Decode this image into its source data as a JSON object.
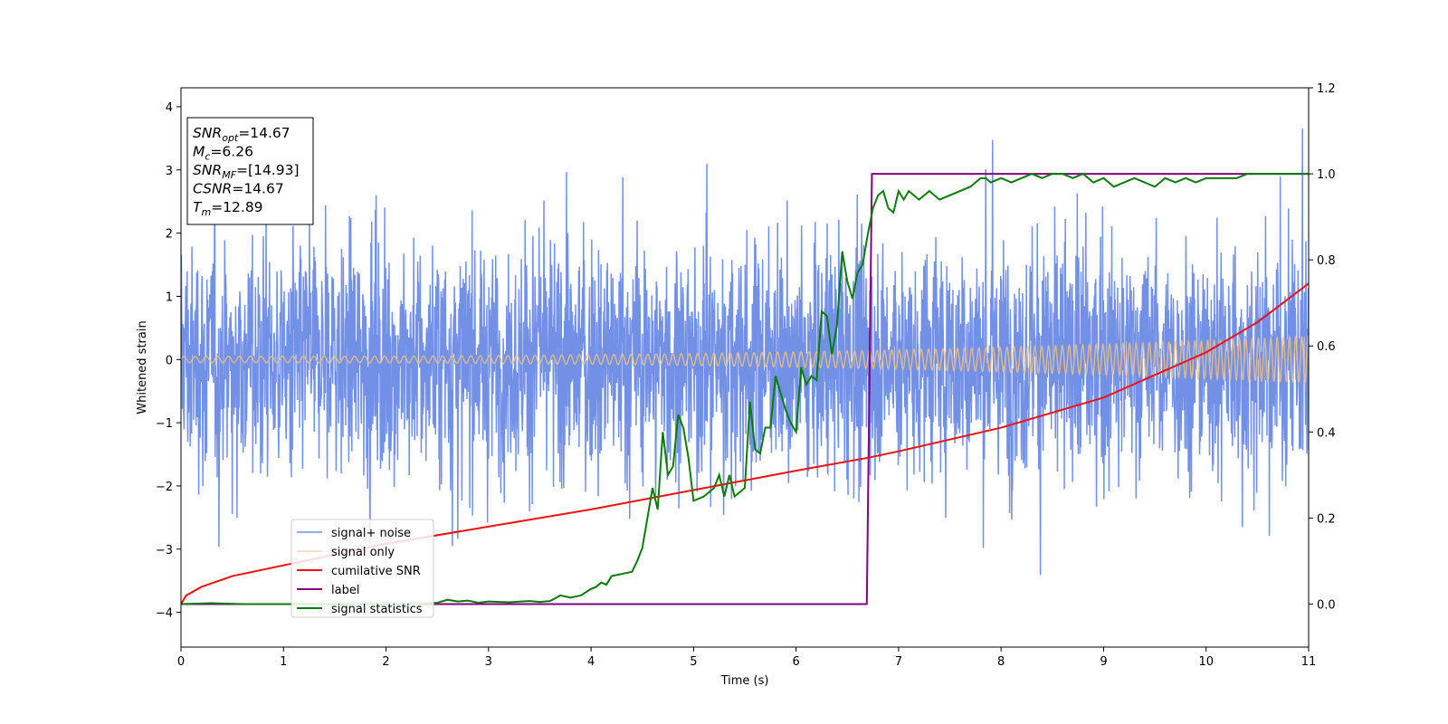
{
  "chart_data": {
    "type": "line",
    "xlabel": "Time (s)",
    "ylabel": "Whitened strain",
    "xlim": [
      0,
      11
    ],
    "ylim_left": [
      -4.55,
      4.3
    ],
    "ylim_right": [
      -0.1,
      1.2
    ],
    "x_ticks": [
      "0",
      "1",
      "2",
      "3",
      "4",
      "5",
      "6",
      "7",
      "8",
      "9",
      "10",
      "11"
    ],
    "y_ticks_left": [
      "−4",
      "−3",
      "−2",
      "−1",
      "0",
      "1",
      "2",
      "3",
      "4"
    ],
    "y_ticks_right": [
      "0.0",
      "0.2",
      "0.4",
      "0.6",
      "0.8",
      "1.0",
      "1.2"
    ],
    "info_box": [
      {
        "base": "SNR",
        "sub": "opt",
        "value": "=14.67"
      },
      {
        "base": "M",
        "sub": "c",
        "value": "=6.26"
      },
      {
        "base": "SNR",
        "sub": "MF",
        "value": "=[14.93]"
      },
      {
        "base": "CSNR",
        "sub": "",
        "value": "=14.67"
      },
      {
        "base": "T",
        "sub": "m",
        "value": "=12.89"
      }
    ],
    "legend_position": "lower-left",
    "series": [
      {
        "name": "signal+ noise",
        "color": "#6b8ae6",
        "axis": "left",
        "description_values": "noise band amplitude about ±2.2 with spikes to ±3.7"
      },
      {
        "name": "signal only",
        "color": "#f0c080",
        "axis": "left",
        "amplitude_start": 0.05,
        "amplitude_end": 0.37
      },
      {
        "name": "cumilative SNR",
        "color": "#ee1111",
        "axis": "right",
        "x": [
          0,
          0.05,
          0.2,
          0.5,
          1,
          2,
          3,
          4,
          5,
          6,
          6.7,
          7,
          8,
          9,
          10,
          10.5,
          11
        ],
        "y": [
          0.0,
          0.02,
          0.04,
          0.065,
          0.09,
          0.14,
          0.18,
          0.22,
          0.265,
          0.31,
          0.34,
          0.355,
          0.41,
          0.48,
          0.585,
          0.655,
          0.745
        ]
      },
      {
        "name": "label",
        "color": "#800080",
        "axis": "right",
        "x": [
          0,
          6.69,
          6.74,
          11
        ],
        "y": [
          0,
          0,
          1,
          1
        ]
      },
      {
        "name": "signal statistics",
        "color": "#0a7a0a",
        "axis": "right",
        "x": [
          0,
          0.3,
          0.6,
          1.0,
          1.5,
          2.0,
          2.3,
          2.5,
          2.6,
          2.7,
          2.8,
          2.9,
          3.0,
          3.2,
          3.4,
          3.5,
          3.6,
          3.7,
          3.8,
          3.9,
          4.0,
          4.05,
          4.1,
          4.15,
          4.2,
          4.3,
          4.4,
          4.45,
          4.5,
          4.55,
          4.6,
          4.65,
          4.7,
          4.75,
          4.8,
          4.85,
          4.9,
          4.95,
          5.0,
          5.1,
          5.2,
          5.25,
          5.3,
          5.35,
          5.4,
          5.45,
          5.5,
          5.55,
          5.6,
          5.65,
          5.7,
          5.75,
          5.8,
          5.9,
          5.95,
          6.0,
          6.05,
          6.1,
          6.15,
          6.2,
          6.25,
          6.3,
          6.35,
          6.4,
          6.45,
          6.5,
          6.55,
          6.6,
          6.65,
          6.7,
          6.75,
          6.8,
          6.85,
          6.9,
          6.95,
          7.0,
          7.05,
          7.1,
          7.15,
          7.2,
          7.25,
          7.3,
          7.35,
          7.4,
          7.5,
          7.6,
          7.7,
          7.75,
          7.8,
          7.85,
          7.9,
          8.0,
          8.1,
          8.2,
          8.3,
          8.4,
          8.5,
          8.6,
          8.7,
          8.8,
          8.9,
          9.0,
          9.1,
          9.2,
          9.3,
          9.4,
          9.5,
          9.6,
          9.7,
          9.8,
          9.9,
          10.0,
          10.1,
          10.2,
          10.3,
          10.4,
          10.5,
          10.7,
          11.0
        ],
        "y": [
          0.0,
          0.002,
          0.0,
          0.0,
          0.0,
          0.0,
          0.0,
          0.003,
          0.01,
          0.006,
          0.008,
          0.003,
          0.006,
          0.004,
          0.007,
          0.005,
          0.007,
          0.02,
          0.015,
          0.02,
          0.035,
          0.04,
          0.05,
          0.045,
          0.065,
          0.07,
          0.075,
          0.1,
          0.13,
          0.2,
          0.27,
          0.22,
          0.4,
          0.3,
          0.32,
          0.44,
          0.41,
          0.34,
          0.24,
          0.25,
          0.27,
          0.3,
          0.25,
          0.3,
          0.25,
          0.26,
          0.27,
          0.47,
          0.36,
          0.35,
          0.41,
          0.41,
          0.53,
          0.45,
          0.42,
          0.4,
          0.55,
          0.51,
          0.53,
          0.52,
          0.68,
          0.67,
          0.58,
          0.65,
          0.82,
          0.75,
          0.71,
          0.77,
          0.79,
          0.86,
          0.92,
          0.95,
          0.96,
          0.92,
          0.91,
          0.96,
          0.94,
          0.96,
          0.95,
          0.94,
          0.95,
          0.96,
          0.95,
          0.94,
          0.95,
          0.96,
          0.97,
          0.98,
          0.99,
          0.99,
          0.98,
          0.99,
          0.98,
          0.99,
          1.0,
          0.99,
          1.0,
          1.0,
          0.99,
          1.0,
          0.98,
          0.99,
          0.97,
          0.98,
          0.99,
          0.98,
          0.97,
          0.99,
          0.98,
          0.99,
          0.98,
          0.99,
          0.99,
          0.99,
          0.99,
          1.0,
          1.0,
          1.0,
          1.0
        ]
      }
    ]
  }
}
